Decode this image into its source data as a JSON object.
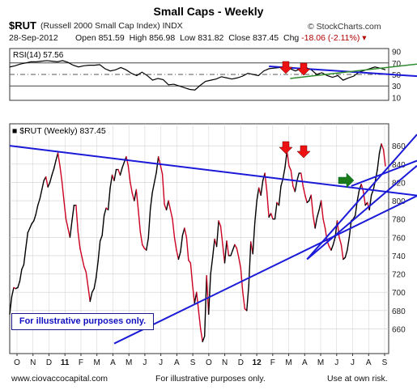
{
  "header": {
    "title": "Small Caps - Weekly",
    "symbol": "$RUT",
    "description": "(Russell 2000 Small Cap Index)",
    "exchange": "INDX",
    "brand": "© StockCharts.com",
    "date": "28-Sep-2012",
    "open_label": "Open",
    "open": "851.59",
    "high_label": "High",
    "high": "856.98",
    "low_label": "Low",
    "low": "831.82",
    "close_label": "Close",
    "close": "837.45",
    "chg_label": "Chg",
    "chg": "-18.06 (-2.11%)"
  },
  "footer": {
    "left": "www.ciovaccocapital.com",
    "center": "For illustrative purposes only.",
    "right": "Use at own risk."
  },
  "note": "For illustrative purposes only.",
  "colors": {
    "up": "#000000",
    "down": "#cc0022",
    "trendline": "#1a1ad8",
    "rsi": "#000000",
    "rsi_trend_green": "#2e8b2e",
    "arrow_red": "#ee1111",
    "arrow_green": "#1a7a1a",
    "grid": "#cfcfcf"
  },
  "chart_data": {
    "type": "line",
    "time_axis": [
      "O",
      "N",
      "D",
      "11",
      "F",
      "M",
      "A",
      "M",
      "J",
      "J",
      "A",
      "S",
      "O",
      "N",
      "D",
      "12",
      "F",
      "M",
      "A",
      "M",
      "J",
      "J",
      "A",
      "S"
    ],
    "rsi_panel": {
      "legend": "RSI(14) 57.56",
      "ylim": [
        5,
        95
      ],
      "yticks": [
        10,
        30,
        50,
        70,
        90
      ],
      "reference_levels": [
        30,
        70
      ],
      "values": [
        63,
        65,
        68,
        70,
        72,
        72,
        73,
        74,
        73,
        72,
        74,
        71,
        66,
        63,
        65,
        66,
        66,
        67,
        60,
        56,
        58,
        62,
        58,
        52,
        48,
        54,
        48,
        40,
        43,
        41,
        32,
        33,
        30,
        27,
        24,
        23,
        31,
        38,
        40,
        42,
        46,
        44,
        42,
        44,
        47,
        52,
        50,
        48,
        56,
        60,
        61,
        62,
        63,
        60,
        56,
        60,
        62,
        58,
        50,
        53,
        48,
        45,
        48,
        40,
        44,
        47,
        54,
        57,
        60,
        63,
        61,
        58
      ],
      "trendline_blue": [
        [
          49,
          64
        ],
        [
          72,
          47
        ]
      ],
      "trendline_green": [
        [
          53,
          43
        ],
        [
          72,
          68
        ]
      ]
    },
    "price_panel": {
      "legend": "$RUT (Weekly) 837.45",
      "ylim": [
        633,
        884
      ],
      "yticks": [
        660,
        680,
        700,
        720,
        740,
        760,
        780,
        800,
        820,
        840,
        860
      ],
      "values": [
        676,
        695,
        705,
        704,
        705,
        712,
        725,
        730,
        748,
        765,
        770,
        775,
        778,
        785,
        795,
        802,
        812,
        822,
        826,
        815,
        820,
        828,
        835,
        844,
        852,
        838,
        821,
        800,
        780,
        770,
        760,
        778,
        795,
        795,
        766,
        748,
        738,
        728,
        722,
        706,
        690,
        700,
        704,
        716,
        734,
        756,
        762,
        784,
        792,
        790,
        814,
        828,
        822,
        834,
        834,
        828,
        836,
        842,
        848,
        838,
        820,
        808,
        800,
        812,
        790,
        766,
        752,
        748,
        746,
        759,
        791,
        809,
        820,
        831,
        848,
        839,
        829,
        796,
        790,
        800,
        790,
        780,
        760,
        746,
        736,
        744,
        762,
        770,
        760,
        735,
        732,
        708,
        688,
        700,
        680,
        660,
        646,
        652,
        718,
        676,
        720,
        738,
        758,
        750,
        778,
        772,
        752,
        732,
        756,
        740,
        740,
        746,
        752,
        748,
        738,
        726,
        700,
        682,
        680,
        708,
        755,
        742,
        776,
        800,
        814,
        806,
        822,
        830,
        810,
        782,
        786,
        780,
        780,
        798,
        795,
        816,
        824,
        836,
        854,
        838,
        833,
        816,
        810,
        822,
        830,
        830,
        816,
        806,
        798,
        800,
        806,
        784,
        770,
        782,
        790,
        800,
        780,
        770,
        756,
        750,
        746,
        752,
        760,
        778,
        760,
        752,
        736,
        738,
        746,
        760,
        778,
        780,
        784,
        800,
        812,
        818,
        810,
        795,
        798,
        790,
        806,
        812,
        822,
        834,
        852,
        862,
        856,
        838
      ],
      "trendlines": [
        [
          [
            0,
            860
          ],
          [
            209,
            804
          ]
        ],
        [
          [
            52,
            644
          ],
          [
            209,
            812
          ]
        ],
        [
          [
            148,
            736
          ],
          [
            209,
            850
          ]
        ],
        [
          [
            148,
            736
          ],
          [
            209,
            888
          ]
        ],
        [
          [
            170,
            816
          ],
          [
            209,
            849
          ]
        ]
      ]
    }
  }
}
